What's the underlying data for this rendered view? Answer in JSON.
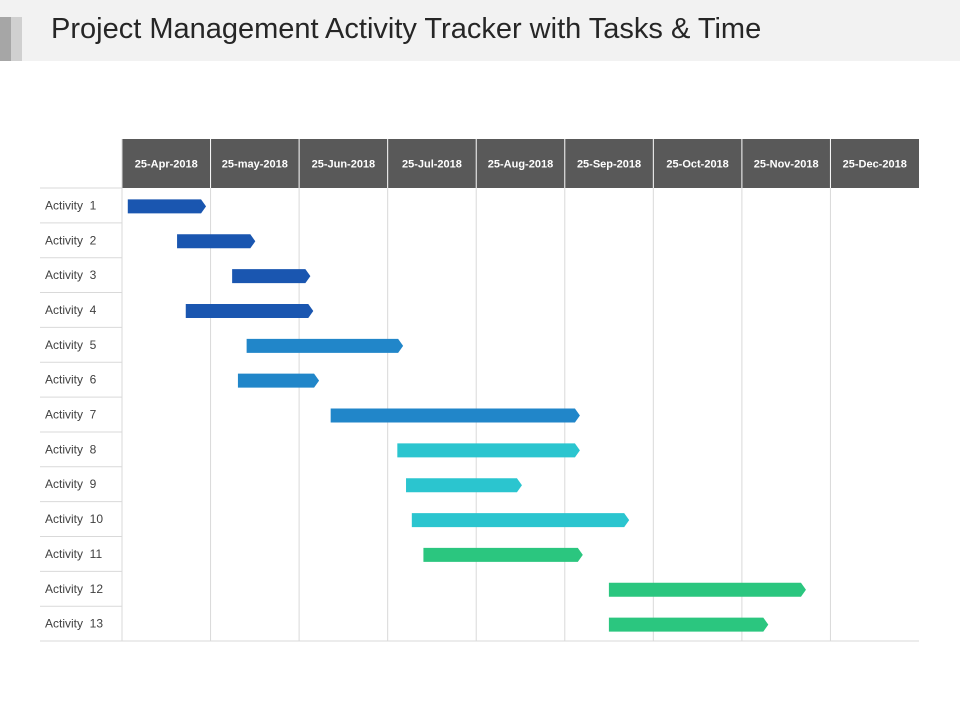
{
  "page": {
    "title": "Project Management Activity Tracker with Tasks & Time"
  },
  "chart_data": {
    "type": "bar",
    "orientation": "gantt",
    "time_axis": {
      "ticks": [
        "25-Apr-2018",
        "25-may-2018",
        "25-Jun-2018",
        "25-Jul-2018",
        "25-Aug-2018",
        "25-Sep-2018",
        "25-Oct-2018",
        "25-Nov-2018",
        "25-Dec-2018"
      ],
      "tick_dates": [
        "2018-04-25",
        "2018-05-25",
        "2018-06-25",
        "2018-07-25",
        "2018-08-25",
        "2018-09-25",
        "2018-10-25",
        "2018-11-25",
        "2018-12-25"
      ],
      "range": [
        "2018-04-25",
        "2019-01-25"
      ]
    },
    "tasks": [
      {
        "label": "Activity  1",
        "start": "2018-04-27",
        "end": "2018-05-24",
        "color": "#1a56b0"
      },
      {
        "label": "Activity  2",
        "start": "2018-05-14",
        "end": "2018-06-10",
        "color": "#1a56b0"
      },
      {
        "label": "Activity  3",
        "start": "2018-06-02",
        "end": "2018-06-29",
        "color": "#1a56b0"
      },
      {
        "label": "Activity  4",
        "start": "2018-05-17",
        "end": "2018-06-30",
        "color": "#1a56b0"
      },
      {
        "label": "Activity  5",
        "start": "2018-06-07",
        "end": "2018-07-31",
        "color": "#2186c9"
      },
      {
        "label": "Activity  6",
        "start": "2018-06-04",
        "end": "2018-07-02",
        "color": "#2186c9"
      },
      {
        "label": "Activity  7",
        "start": "2018-07-06",
        "end": "2018-09-30",
        "color": "#2186c9"
      },
      {
        "label": "Activity  8",
        "start": "2018-07-29",
        "end": "2018-09-30",
        "color": "#2bc5cf"
      },
      {
        "label": "Activity  9",
        "start": "2018-08-01",
        "end": "2018-09-10",
        "color": "#2bc5cf"
      },
      {
        "label": "Activity  10",
        "start": "2018-08-03",
        "end": "2018-10-17",
        "color": "#2bc5cf"
      },
      {
        "label": "Activity  11",
        "start": "2018-08-07",
        "end": "2018-10-01",
        "color": "#2bc67f"
      },
      {
        "label": "Activity  12",
        "start": "2018-10-10",
        "end": "2018-12-17",
        "color": "#2bc67f"
      },
      {
        "label": "Activity  13",
        "start": "2018-10-10",
        "end": "2018-12-04",
        "color": "#2bc67f"
      }
    ],
    "grid": true
  }
}
